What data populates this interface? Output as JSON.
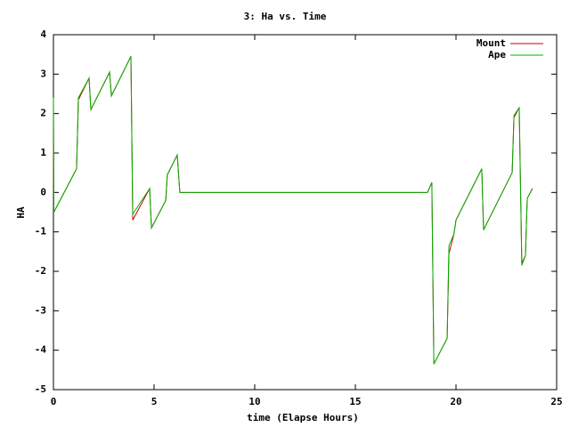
{
  "chart_data": {
    "type": "line",
    "title": "3: Ha vs. Time",
    "x_label": "time (Elapse Hours)",
    "y_label": "HA",
    "x": [
      0,
      0.02,
      1.15,
      1.24,
      1.77,
      1.86,
      2.79,
      2.88,
      3.85,
      3.94,
      4.78,
      4.87,
      5.58,
      5.66,
      6.15,
      6.28,
      18.58,
      18.8,
      18.9,
      19.56,
      19.65,
      19.9,
      20.0,
      21.28,
      21.37,
      22.79,
      22.88,
      23.14,
      23.27,
      23.45,
      23.54,
      23.8
    ],
    "series": [
      {
        "name": "Mount",
        "color": "#cc0000",
        "values": [
          2.4,
          -0.5,
          0.6,
          2.35,
          2.9,
          2.1,
          3.05,
          2.45,
          3.45,
          -0.7,
          0.1,
          -0.9,
          -0.2,
          0.45,
          0.95,
          0,
          0,
          0.25,
          -4.35,
          -3.7,
          -1.55,
          -1.05,
          -0.7,
          0.6,
          -0.95,
          0.5,
          1.9,
          2.15,
          -1.8,
          -1.6,
          -0.15,
          0.1
        ]
      },
      {
        "name": "Ape",
        "color": "#00b000",
        "values": [
          2.4,
          -0.5,
          0.6,
          2.4,
          2.9,
          2.1,
          3.05,
          2.45,
          3.45,
          -0.55,
          0.1,
          -0.9,
          -0.2,
          0.45,
          0.95,
          0,
          0,
          0.25,
          -4.35,
          -3.7,
          -1.35,
          -1.05,
          -0.7,
          0.6,
          -0.95,
          0.5,
          1.95,
          2.15,
          -1.85,
          -1.6,
          -0.15,
          0.1
        ]
      }
    ],
    "xlim": [
      0,
      25
    ],
    "xticks": [
      0,
      5,
      10,
      15,
      20,
      25
    ],
    "ylim": [
      -5,
      4
    ],
    "yticks": [
      -5,
      -4,
      -3,
      -2,
      -1,
      0,
      1,
      2,
      3,
      4
    ],
    "legend": "top-right"
  }
}
